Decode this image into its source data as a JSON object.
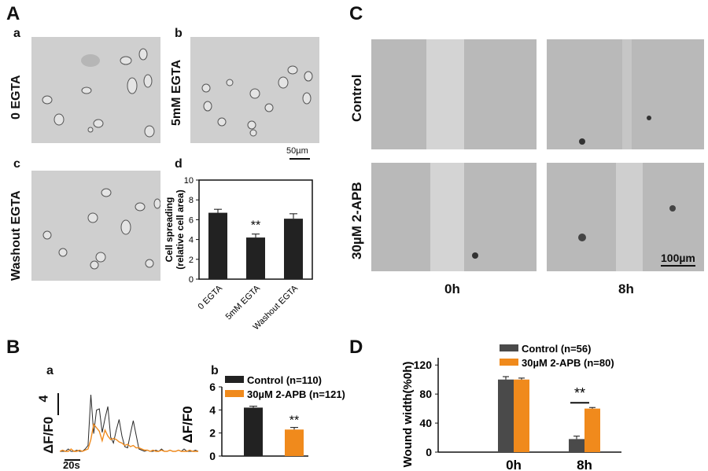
{
  "panels": {
    "A": {
      "label": "A",
      "sublabels": [
        "a",
        "b",
        "c",
        "d"
      ],
      "row_labels": [
        "0 EGTA",
        "5mM EGTA",
        "Washout EGTA"
      ],
      "scale_bar": "50µm"
    },
    "B": {
      "label": "B",
      "sublabels": [
        "a",
        "b"
      ],
      "trace_ylabel": "ΔF/F0",
      "trace_scale_value": "4",
      "time_scale": "20s"
    },
    "C": {
      "label": "C",
      "row_labels": [
        "Control",
        "30µM 2-APB"
      ],
      "col_labels": [
        "0h",
        "8h"
      ],
      "scale_bar": "100µm"
    },
    "D": {
      "label": "D"
    }
  },
  "colors": {
    "control": "#2a2a2a",
    "treatment": "#f08a1c",
    "dark_bar": "#222222",
    "gray_bar": "#4a4a4a"
  },
  "chart_data": [
    {
      "id": "A-d",
      "type": "bar",
      "title": "",
      "ylabel": "Cell spreading (relative cell area)",
      "ylabel_lines": [
        "Cell spreading",
        "(relative cell area)"
      ],
      "categories": [
        "0 EGTA",
        "5mM EGTA",
        "Washout EGTA"
      ],
      "values": [
        6.7,
        4.2,
        6.1
      ],
      "errors": [
        0.35,
        0.35,
        0.5
      ],
      "annotations": [
        "",
        "**",
        ""
      ],
      "ylim": [
        0,
        10
      ],
      "yticks": [
        "0",
        "2",
        "4",
        "6",
        "8",
        "10"
      ]
    },
    {
      "id": "B-a",
      "type": "line",
      "xlabel": "",
      "ylabel": "ΔF/F0",
      "series": [
        {
          "name": "Control",
          "y": [
            0,
            0,
            0,
            0.2,
            0,
            0,
            0.1,
            0,
            0,
            0.2,
            0.5,
            4.8,
            1.5,
            3.5,
            3.6,
            1.6,
            2.8,
            3.8,
            1.2,
            0.7,
            1.8,
            2.7,
            1.3,
            0.4,
            0.3,
            1.5,
            2.6,
            1.4,
            0.2,
            0.1,
            0,
            0.1,
            0,
            0,
            0.1,
            0,
            0.2,
            0,
            0,
            0.1,
            0,
            0,
            0.1,
            0,
            0.2,
            0,
            0,
            0,
            0.1,
            0
          ]
        },
        {
          "name": "30µM 2-APB",
          "y": [
            0,
            0.1,
            0,
            0,
            0.2,
            0,
            0,
            0.1,
            0,
            0.1,
            0.2,
            1.0,
            2.3,
            2.0,
            1.7,
            0.9,
            1.8,
            1.3,
            1.0,
            1.1,
            1.0,
            0.8,
            0.7,
            0.5,
            0.6,
            0.4,
            0.5,
            0.3,
            0.3,
            0.2,
            0.1,
            0.1,
            0,
            0.1,
            0,
            0,
            0.1,
            0,
            0,
            0.1,
            0,
            0,
            0.1,
            0,
            0,
            0,
            0.1,
            0,
            0,
            0
          ]
        }
      ]
    },
    {
      "id": "B-b",
      "type": "bar",
      "ylabel": "ΔF/F0",
      "categories": [
        "Control (n=110)",
        "30µM 2-APB (n=121)"
      ],
      "legend": [
        "Control (n=110)",
        "30µM 2-APB (n=121)"
      ],
      "values": [
        4.2,
        2.3
      ],
      "errors": [
        0.12,
        0.18
      ],
      "annotations": [
        "",
        "**"
      ],
      "ylim": [
        0,
        6
      ],
      "yticks": [
        "0",
        "2",
        "4",
        "6"
      ]
    },
    {
      "id": "D",
      "type": "bar",
      "ylabel": "Wound width(%0h)",
      "categories": [
        "0h",
        "8h"
      ],
      "series": [
        {
          "name": "Control (n=56)",
          "values": [
            100,
            18
          ],
          "errors": [
            4,
            4
          ]
        },
        {
          "name": "30µM 2-APB (n=80)",
          "values": [
            100,
            60
          ],
          "errors": [
            2,
            1.5
          ]
        }
      ],
      "annotation": "**",
      "ylim": [
        0,
        130
      ],
      "yticks": [
        "0",
        "40",
        "80",
        "120"
      ]
    }
  ]
}
